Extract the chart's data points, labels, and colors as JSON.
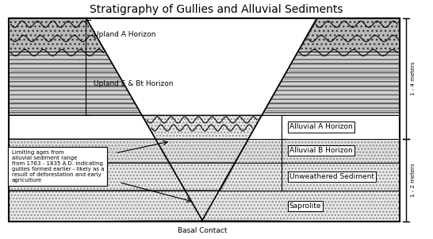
{
  "title": "Stratigraphy of Gullies and Alluvial Sediments",
  "title_fontsize": 10,
  "fig_width": 5.46,
  "fig_height": 3.01,
  "dpi": 100,
  "labels": {
    "upland_a": "Upland A Horizon",
    "upland_ebt": "Upland E & Bt Horizon",
    "alluvial_a": "Alluvial A Horizon",
    "alluvial_b": "Alluvial B Horizon",
    "unweathered": "Unweathered Sediment",
    "saprolite": "Saprolite",
    "basal": "Basal Contact",
    "text_box": "Limiting ages from\nalluvial sediment range\nfrom 1763 - 1835 A.D. indicating\ngullies formed earlier - likely as a\nresult of deforestation and early\nagriculture",
    "scale_top": "1 - 4 meters",
    "scale_bottom": "1 - 2 meters"
  },
  "colors": {
    "bg": "#ffffff",
    "upland_a_fc": "#cccccc",
    "ebt_fc": "#d8d8d8",
    "saprolite_fc": "#e8e8e8",
    "alluvial_fc": "#e8e8e8",
    "gully_fill_fc": "#f0f0f0"
  }
}
